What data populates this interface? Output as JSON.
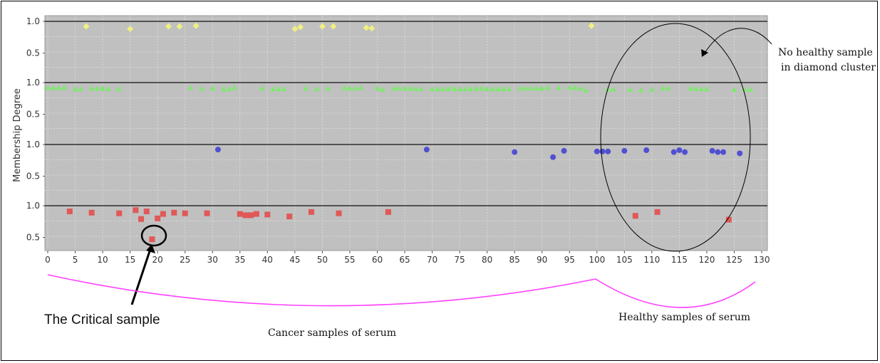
{
  "chart_data": {
    "type": "scatter",
    "xlabel": "",
    "ylabel": "Membership Degree",
    "xlim": [
      0,
      130
    ],
    "x_ticks": [
      "0",
      "5",
      "10",
      "15",
      "20",
      "25",
      "30",
      "35",
      "40",
      "45",
      "50",
      "55",
      "60",
      "65",
      "70",
      "75",
      "80",
      "85",
      "90",
      "95",
      "100",
      "105",
      "110",
      "115",
      "120",
      "125",
      "130"
    ],
    "band_tick_labels": [
      "1.0",
      "0.5"
    ],
    "band_range": [
      0.4,
      1.0
    ],
    "grid": true,
    "colors": {
      "background": "#c0c0c0",
      "grid": "#d8d8d8",
      "diamond": "#f0f080",
      "triangle": "#80e870",
      "circle": "#5050d0",
      "square": "#e05858",
      "curve": "#ff40ff"
    },
    "series": [
      {
        "marker": "diamond",
        "band": 0,
        "x": [
          7,
          15,
          22,
          24,
          27,
          45,
          46,
          50,
          52,
          58,
          59,
          99
        ],
        "y": [
          0.92,
          0.88,
          0.92,
          0.92,
          0.93,
          0.88,
          0.91,
          0.92,
          0.92,
          0.9,
          0.89,
          0.93
        ]
      },
      {
        "marker": "triangle",
        "band": 1,
        "x": [
          0,
          1,
          2,
          3,
          5,
          6,
          8,
          9,
          10,
          11,
          13,
          26,
          28,
          30,
          32,
          33,
          34,
          39,
          41,
          42,
          43,
          47,
          49,
          51,
          54,
          55,
          56,
          57,
          60,
          61,
          63,
          64,
          65,
          66,
          67,
          68,
          70,
          71,
          72,
          73,
          74,
          75,
          76,
          77,
          78,
          79,
          80,
          81,
          82,
          83,
          84,
          86,
          87,
          88,
          89,
          90,
          91,
          93,
          95,
          96,
          97,
          98,
          102,
          103,
          106,
          108,
          110,
          112,
          113,
          117,
          118,
          119,
          120,
          125,
          127,
          128
        ],
        "y": [
          0.92,
          0.92,
          0.92,
          0.92,
          0.9,
          0.9,
          0.91,
          0.91,
          0.91,
          0.9,
          0.9,
          0.92,
          0.91,
          0.91,
          0.9,
          0.9,
          0.92,
          0.91,
          0.9,
          0.9,
          0.9,
          0.91,
          0.9,
          0.91,
          0.92,
          0.91,
          0.91,
          0.92,
          0.91,
          0.89,
          0.91,
          0.91,
          0.91,
          0.91,
          0.9,
          0.9,
          0.9,
          0.9,
          0.9,
          0.91,
          0.9,
          0.9,
          0.9,
          0.9,
          0.91,
          0.91,
          0.9,
          0.9,
          0.9,
          0.9,
          0.9,
          0.91,
          0.91,
          0.91,
          0.91,
          0.91,
          0.92,
          0.92,
          0.92,
          0.92,
          0.91,
          0.88,
          0.9,
          0.89,
          0.89,
          0.88,
          0.89,
          0.91,
          0.91,
          0.91,
          0.9,
          0.9,
          0.9,
          0.89,
          0.89,
          0.89
        ]
      },
      {
        "marker": "circle",
        "band": 2,
        "x": [
          31,
          69,
          85,
          92,
          94,
          100,
          101,
          102,
          105,
          109,
          114,
          115,
          116,
          121,
          122,
          123,
          126
        ],
        "y": [
          0.92,
          0.92,
          0.88,
          0.8,
          0.9,
          0.89,
          0.89,
          0.89,
          0.9,
          0.91,
          0.88,
          0.91,
          0.88,
          0.9,
          0.88,
          0.88,
          0.86
        ]
      },
      {
        "marker": "square",
        "band": 3,
        "x": [
          4,
          8,
          13,
          16,
          17,
          18,
          20,
          21,
          23,
          25,
          29,
          35,
          36,
          37,
          38,
          40,
          44,
          48,
          53,
          62,
          107,
          111,
          124,
          19
        ],
        "y": [
          0.91,
          0.89,
          0.88,
          0.93,
          0.79,
          0.91,
          0.8,
          0.87,
          0.89,
          0.88,
          0.88,
          0.87,
          0.85,
          0.85,
          0.87,
          0.86,
          0.83,
          0.9,
          0.88,
          0.9,
          0.84,
          0.9,
          0.78,
          0.47
        ]
      }
    ]
  },
  "annotations": {
    "no_healthy_line1": "No healthy sample",
    "no_healthy_line2": "in diamond cluster",
    "critical_sample": "The Critical  sample",
    "cancer_samples": "Cancer samples of serum",
    "healthy_samples": "Healthy samples of serum"
  }
}
